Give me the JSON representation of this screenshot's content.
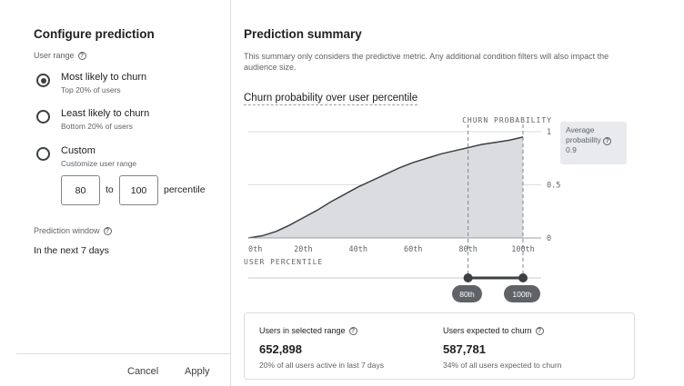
{
  "configure": {
    "title": "Configure prediction",
    "user_range_label": "User range",
    "options": [
      {
        "label": "Most likely to churn",
        "sub": "Top 20% of users",
        "checked": true
      },
      {
        "label": "Least likely to churn",
        "sub": "Bottom 20% of users",
        "checked": false
      },
      {
        "label": "Custom",
        "sub": "Customize user range",
        "checked": false
      }
    ],
    "range_from": "80",
    "range_to_word": "to",
    "range_to": "100",
    "range_unit": "percentile",
    "window_label": "Prediction window",
    "window_value": "In the next 7 days",
    "cancel_label": "Cancel",
    "apply_label": "Apply"
  },
  "summary": {
    "title": "Prediction summary",
    "description": "This summary only considers the predictive metric. Any additional condition filters will also impact the audience size.",
    "chart_title": "Churn probability over user percentile",
    "average_label": "Average probability",
    "average_value": "0.9",
    "range_pill_from": "80th",
    "range_pill_to": "100th",
    "stats": {
      "selected_label": "Users in selected range",
      "selected_value": "652,898",
      "selected_sub": "20% of all users active in last 7 days",
      "churn_label": "Users expected to churn",
      "churn_value": "587,781",
      "churn_sub": "34% of all users expected to churn"
    }
  },
  "chart_data": {
    "type": "area",
    "xlabel": "USER PERCENTILE",
    "ylabel": "CHURN PROBABILITY",
    "x_ticks": [
      "0th",
      "20th",
      "40th",
      "60th",
      "80th",
      "100th"
    ],
    "y_ticks": [
      "0",
      "0.5",
      "1"
    ],
    "xlim": [
      0,
      100
    ],
    "ylim": [
      0,
      1
    ],
    "x": [
      0,
      5,
      10,
      15,
      20,
      25,
      30,
      35,
      40,
      45,
      50,
      55,
      60,
      65,
      70,
      75,
      80,
      85,
      90,
      95,
      100
    ],
    "values": [
      0.0,
      0.02,
      0.06,
      0.12,
      0.19,
      0.26,
      0.34,
      0.41,
      0.48,
      0.54,
      0.6,
      0.66,
      0.71,
      0.75,
      0.79,
      0.82,
      0.85,
      0.88,
      0.9,
      0.92,
      0.95
    ],
    "selected_range": [
      80,
      100
    ],
    "grid": true,
    "colors": {
      "fill": "#dadce0",
      "line": "#3c4043",
      "grid": "#dadce0"
    }
  }
}
